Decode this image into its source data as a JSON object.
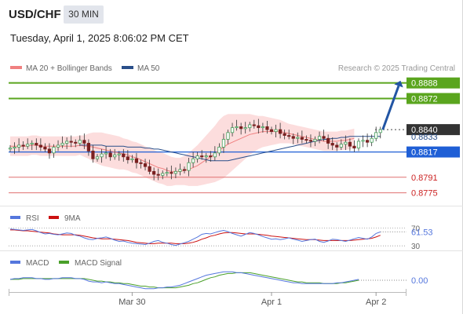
{
  "header": {
    "symbol": "USD/CHF",
    "timeframe": "30 MIN",
    "datetime": "Tuesday, April 1, 2025 8:06:02 PM CET"
  },
  "copyright": "Research © 2025 Trading Central",
  "colors": {
    "resistance": "#5aa51e",
    "pivot": "#1f5fd6",
    "support": "#e07070",
    "last": "#333333",
    "candle_up": "#45a15c",
    "candle_down": "#7a2020",
    "ma20": "#f08080",
    "ma50": "#2a4f8a",
    "bands_fill": "#fbd7d7",
    "arrow": "#2255a4",
    "rsi": "#5577dd",
    "rsi_ma": "#cc1111",
    "macd": "#5577dd",
    "macd_signal": "#4aa02a"
  },
  "chart_data": [
    {
      "type": "candlestick",
      "name": "price",
      "legend": [
        {
          "label": "MA 20 + Bollinger Bands",
          "color": "#f08080"
        },
        {
          "label": "MA 50",
          "color": "#2a4f8a"
        }
      ],
      "ylim": [
        0.8765,
        0.8895
      ],
      "levels": [
        {
          "value": 0.8888,
          "label": "0.8888",
          "kind": "resistance"
        },
        {
          "value": 0.8872,
          "label": "0.8872",
          "kind": "resistance"
        },
        {
          "value": 0.884,
          "label": "0.8840",
          "kind": "last"
        },
        {
          "value": 0.8833,
          "label": "0.8833",
          "kind": "ma"
        },
        {
          "value": 0.8817,
          "label": "0.8817",
          "kind": "pivot"
        },
        {
          "value": 0.8791,
          "label": "0.8791",
          "kind": "support"
        },
        {
          "value": 0.8775,
          "label": "0.8775",
          "kind": "support"
        }
      ],
      "x_ticks": [
        {
          "index": 28,
          "label": "Mar 30"
        },
        {
          "index": 60,
          "label": "Apr 1"
        },
        {
          "index": 84,
          "label": "Apr 2"
        }
      ],
      "n_slots": 90,
      "close": [
        0.8821,
        0.8822,
        0.8824,
        0.8823,
        0.8825,
        0.8826,
        0.8824,
        0.8822,
        0.882,
        0.8816,
        0.8822,
        0.8824,
        0.8826,
        0.8828,
        0.8827,
        0.8826,
        0.8829,
        0.8826,
        0.8818,
        0.881,
        0.8812,
        0.8815,
        0.8816,
        0.8812,
        0.8814,
        0.8815,
        0.8812,
        0.8809,
        0.881,
        0.8806,
        0.8805,
        0.8802,
        0.8797,
        0.8794,
        0.8793,
        0.8795,
        0.8796,
        0.8795,
        0.8797,
        0.8799,
        0.8798,
        0.8806,
        0.881,
        0.8813,
        0.8812,
        0.8813,
        0.8812,
        0.8816,
        0.8822,
        0.883,
        0.8837,
        0.8842,
        0.8843,
        0.8841,
        0.8842,
        0.8845,
        0.8844,
        0.8842,
        0.8843,
        0.884,
        0.8838,
        0.884,
        0.8836,
        0.8834,
        0.8833,
        0.8831,
        0.8832,
        0.883,
        0.8829,
        0.8828,
        0.883,
        0.8833,
        0.8831,
        0.8826,
        0.8824,
        0.8822,
        0.8825,
        0.8827,
        0.8823,
        0.8821,
        0.8828,
        0.8829,
        0.8827,
        0.8831,
        0.8837,
        0.884
      ],
      "ma20": [
        0.8823,
        0.8823,
        0.8823,
        0.8823,
        0.8823,
        0.8824,
        0.8824,
        0.8823,
        0.8823,
        0.8823,
        0.8823,
        0.8823,
        0.8823,
        0.8823,
        0.8823,
        0.8823,
        0.8824,
        0.8823,
        0.8823,
        0.8822,
        0.8821,
        0.882,
        0.8819,
        0.8818,
        0.8817,
        0.8816,
        0.8815,
        0.8814,
        0.8812,
        0.8811,
        0.8809,
        0.8807,
        0.8805,
        0.8803,
        0.8801,
        0.88,
        0.8798,
        0.8797,
        0.8797,
        0.8797,
        0.8798,
        0.8799,
        0.8801,
        0.8803,
        0.8806,
        0.8809,
        0.8812,
        0.8815,
        0.8819,
        0.8822,
        0.8825,
        0.8827,
        0.8829,
        0.8831,
        0.8833,
        0.8835,
        0.8836,
        0.8837,
        0.8838,
        0.8838,
        0.8838,
        0.8838,
        0.8838,
        0.8837,
        0.8836,
        0.8835,
        0.8834,
        0.8833,
        0.8832,
        0.8831,
        0.883,
        0.8829,
        0.8828,
        0.8828,
        0.8828,
        0.8828,
        0.8829,
        0.8829,
        0.883,
        0.8831
      ],
      "ma50": [
        0.8824,
        0.8824,
        0.8824,
        0.8824,
        0.8824,
        0.8824,
        0.8823,
        0.8823,
        0.8823,
        0.8823,
        0.8823,
        0.8822,
        0.8822,
        0.8822,
        0.8822,
        0.8821,
        0.8821,
        0.882,
        0.882,
        0.8819,
        0.8818,
        0.8817,
        0.8816,
        0.8815,
        0.8814,
        0.8813,
        0.8812,
        0.8811,
        0.881,
        0.8809,
        0.8808,
        0.8808,
        0.8808,
        0.8808,
        0.8808,
        0.8809,
        0.881,
        0.8811,
        0.8812,
        0.8813,
        0.8814,
        0.8815,
        0.8816,
        0.8817,
        0.8818,
        0.8819,
        0.882,
        0.8821,
        0.8822,
        0.8823,
        0.8824,
        0.8825,
        0.8826,
        0.8827,
        0.8828,
        0.8829,
        0.883,
        0.883,
        0.8831,
        0.8831,
        0.8832,
        0.8832,
        0.8833,
        0.8833,
        0.8833,
        0.8833,
        0.8833,
        0.8833,
        0.8833,
        0.8833
      ],
      "ma50_start_index": 16,
      "band_width": [
        0.001,
        0.001,
        0.001,
        0.001,
        0.001,
        0.001,
        0.001,
        0.001,
        0.001,
        0.001,
        0.001,
        0.001,
        0.001,
        0.001,
        0.001,
        0.001,
        0.001,
        0.0011,
        0.0013,
        0.0015,
        0.0016,
        0.0017,
        0.0017,
        0.0017,
        0.0017,
        0.0017,
        0.0016,
        0.0016,
        0.0016,
        0.0016,
        0.0016,
        0.0016,
        0.0016,
        0.0016,
        0.0016,
        0.0016,
        0.0016,
        0.0015,
        0.0014,
        0.0014,
        0.0015,
        0.0017,
        0.0019,
        0.0021,
        0.0023,
        0.0025,
        0.0027,
        0.0029,
        0.0031,
        0.0032,
        0.0031,
        0.0029,
        0.0027,
        0.0025,
        0.0023,
        0.0021,
        0.0019,
        0.0017,
        0.0016,
        0.0015,
        0.0014,
        0.0013,
        0.0012,
        0.0011,
        0.001,
        0.001,
        0.001,
        0.001,
        0.001,
        0.001,
        0.001,
        0.001,
        0.001,
        0.001,
        0.001,
        0.001,
        0.001,
        0.001,
        0.001,
        0.001
      ]
    },
    {
      "type": "line",
      "name": "RSI",
      "legend": [
        {
          "label": "RSI",
          "color": "#5577dd"
        },
        {
          "label": "9MA",
          "color": "#cc1111"
        }
      ],
      "ylim": [
        25,
        80
      ],
      "ticks": [
        {
          "value": 70,
          "label": "70"
        },
        {
          "value": 30,
          "label": "30"
        }
      ],
      "current_label": "61.53",
      "rsi": [
        68,
        67,
        66,
        65,
        66,
        67,
        64,
        60,
        57,
        58,
        56,
        55,
        57,
        59,
        58,
        54,
        52,
        48,
        45,
        44,
        47,
        48,
        50,
        47,
        43,
        40,
        41,
        38,
        36,
        35,
        34,
        33,
        36,
        40,
        42,
        38,
        36,
        33,
        31,
        34,
        37,
        40,
        45,
        50,
        56,
        58,
        57,
        60,
        63,
        65,
        62,
        58,
        55,
        52,
        56,
        60,
        58,
        55,
        51,
        48,
        45,
        46,
        44,
        46,
        48,
        45,
        43,
        40,
        42,
        44,
        45,
        40,
        38,
        41,
        45,
        44,
        42,
        40,
        43,
        46,
        49,
        47,
        45,
        50,
        58,
        61.53
      ],
      "rsi_ma": [
        66,
        66,
        65,
        64,
        64,
        63,
        62,
        61,
        60,
        59,
        57,
        56,
        55,
        55,
        55,
        55,
        54,
        52,
        50,
        48,
        47,
        46,
        46,
        46,
        45,
        44,
        43,
        42,
        40,
        38,
        37,
        36,
        35,
        35,
        36,
        36,
        36,
        36,
        35,
        35,
        35,
        36,
        38,
        41,
        45,
        48,
        52,
        54,
        57,
        59,
        60,
        60,
        59,
        58,
        57,
        57,
        57,
        56,
        55,
        54,
        52,
        51,
        50,
        49,
        48,
        47,
        46,
        45,
        44,
        44,
        44,
        43,
        42,
        42,
        42,
        42,
        42,
        42,
        42,
        43,
        44,
        45,
        46,
        47,
        50,
        54
      ]
    },
    {
      "type": "line",
      "name": "MACD",
      "legend": [
        {
          "label": "MACD",
          "color": "#5577dd"
        },
        {
          "label": "MACD Signal",
          "color": "#4aa02a"
        }
      ],
      "ylim": [
        -0.0014,
        0.0014
      ],
      "current_label": "0.00",
      "macd": [
        0.0001,
        0.0002,
        0.0002,
        0.0003,
        0.0003,
        0.0003,
        0.0002,
        0.0002,
        0.0001,
        0.0001,
        0.0002,
        0.0002,
        0.0003,
        0.0003,
        0.0003,
        0.0002,
        0.0002,
        0.0001,
        -0.0001,
        -0.0002,
        -0.0002,
        -0.0003,
        -0.0002,
        -0.0003,
        -0.0004,
        -0.0004,
        -0.0005,
        -0.0006,
        -0.0007,
        -0.0008,
        -0.0009,
        -0.001,
        -0.001,
        -0.001,
        -0.0009,
        -0.0009,
        -0.0008,
        -0.0008,
        -0.0007,
        -0.0006,
        -0.0004,
        -0.0002,
        0.0,
        0.0002,
        0.0004,
        0.0006,
        0.0007,
        0.0008,
        0.0009,
        0.001,
        0.001,
        0.001,
        0.0009,
        0.0009,
        0.0008,
        0.0007,
        0.0006,
        0.0005,
        0.0004,
        0.0003,
        0.0002,
        0.0001,
        0.0,
        -0.0001,
        -0.0002,
        -0.0003,
        -0.0003,
        -0.0004,
        -0.0004,
        -0.0004,
        -0.0004,
        -0.0004,
        -0.0004,
        -0.0004,
        -0.0004,
        -0.0003,
        -0.0003,
        -0.0002,
        -0.0001,
        0.0,
        0.0001
      ],
      "signal": [
        0.0001,
        0.0001,
        0.0001,
        0.0002,
        0.0002,
        0.0002,
        0.0002,
        0.0002,
        0.0002,
        0.0002,
        0.0002,
        0.0002,
        0.0002,
        0.0002,
        0.0002,
        0.0002,
        0.0002,
        0.0002,
        0.0001,
        0.0,
        -0.0001,
        -0.0001,
        -0.0002,
        -0.0002,
        -0.0003,
        -0.0003,
        -0.0004,
        -0.0004,
        -0.0005,
        -0.0006,
        -0.0007,
        -0.0007,
        -0.0008,
        -0.0008,
        -0.0009,
        -0.0009,
        -0.0009,
        -0.0009,
        -0.0009,
        -0.0008,
        -0.0007,
        -0.0006,
        -0.0004,
        -0.0003,
        -0.0001,
        0.0001,
        0.0003,
        0.0004,
        0.0006,
        0.0007,
        0.0008,
        0.0008,
        0.0009,
        0.0009,
        0.0009,
        0.0009,
        0.0008,
        0.0007,
        0.0006,
        0.0005,
        0.0004,
        0.0003,
        0.0002,
        0.0001,
        0.0,
        -0.0001,
        -0.0002,
        -0.0002,
        -0.0003,
        -0.0003,
        -0.0003,
        -0.0003,
        -0.0004,
        -0.0004,
        -0.0004,
        -0.0004,
        -0.0003,
        -0.0003,
        -0.0002,
        -0.0001,
        0.0
      ]
    }
  ]
}
